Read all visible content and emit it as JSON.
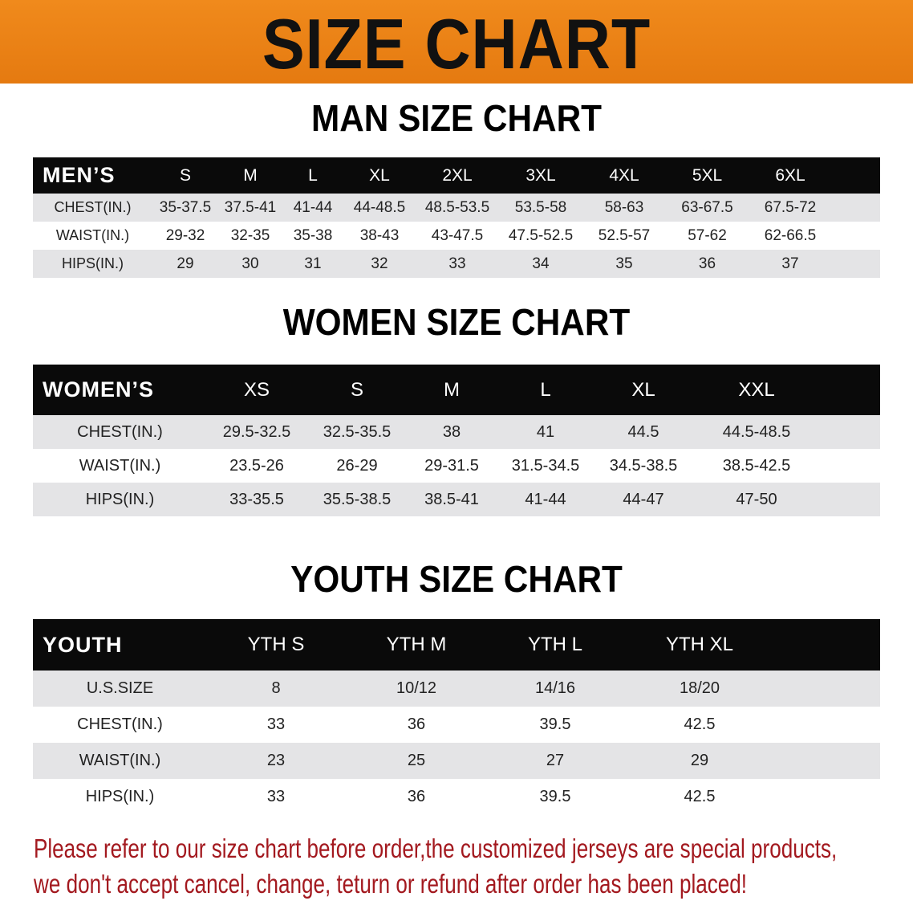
{
  "banner_title": "SIZE CHART",
  "men": {
    "title": "MAN SIZE CHART",
    "header": [
      "MEN’S",
      "S",
      "M",
      "L",
      "XL",
      "2XL",
      "3XL",
      "4XL",
      "5XL",
      "6XL"
    ],
    "rows": [
      [
        "CHEST(IN.)",
        "35-37.5",
        "37.5-41",
        "41-44",
        "44-48.5",
        "48.5-53.5",
        "53.5-58",
        "58-63",
        "63-67.5",
        "67.5-72"
      ],
      [
        "WAIST(IN.)",
        "29-32",
        "32-35",
        "35-38",
        "38-43",
        "43-47.5",
        "47.5-52.5",
        "52.5-57",
        "57-62",
        "62-66.5"
      ],
      [
        "HIPS(IN.)",
        "29",
        "30",
        "31",
        "32",
        "33",
        "34",
        "35",
        "36",
        "37"
      ]
    ]
  },
  "women": {
    "title": "WOMEN SIZE CHART",
    "header": [
      "WOMEN’S",
      "XS",
      "S",
      "M",
      "L",
      "XL",
      "XXL"
    ],
    "rows": [
      [
        "CHEST(IN.)",
        "29.5-32.5",
        "32.5-35.5",
        "38",
        "41",
        "44.5",
        "44.5-48.5"
      ],
      [
        "WAIST(IN.)",
        "23.5-26",
        "26-29",
        "29-31.5",
        "31.5-34.5",
        "34.5-38.5",
        "38.5-42.5"
      ],
      [
        "HIPS(IN.)",
        "33-35.5",
        "35.5-38.5",
        "38.5-41",
        "41-44",
        "44-47",
        "47-50"
      ]
    ]
  },
  "youth": {
    "title": "YOUTH SIZE CHART",
    "header": [
      "YOUTH",
      "YTH S",
      "YTH M",
      "YTH L",
      "YTH XL"
    ],
    "rows": [
      [
        "U.S.SIZE",
        "8",
        "10/12",
        "14/16",
        "18/20"
      ],
      [
        "CHEST(IN.)",
        "33",
        "36",
        "39.5",
        "42.5"
      ],
      [
        "WAIST(IN.)",
        "23",
        "25",
        "27",
        "29"
      ],
      [
        "HIPS(IN.)",
        "33",
        "36",
        "39.5",
        "42.5"
      ]
    ]
  },
  "notice": [
    "Please refer to our size chart before order,the customized jerseys are special products,",
    "we don't accept cancel, change, teturn or refund after order has been placed!"
  ],
  "colors": {
    "banner": "#e57a10",
    "notice": "#a3191f",
    "header_bg": "#0a0a0a",
    "stripe": "#e4e4e6"
  }
}
